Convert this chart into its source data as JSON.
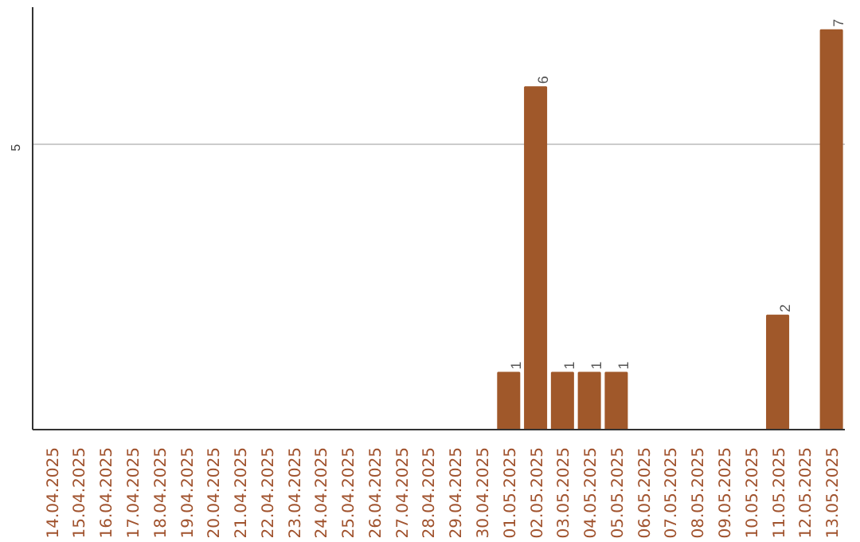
{
  "chart_data": {
    "type": "bar",
    "categories": [
      "14.04.2025",
      "15.04.2025",
      "16.04.2025",
      "17.04.2025",
      "18.04.2025",
      "19.04.2025",
      "20.04.2025",
      "21.04.2025",
      "22.04.2025",
      "23.04.2025",
      "24.04.2025",
      "25.04.2025",
      "26.04.2025",
      "27.04.2025",
      "28.04.2025",
      "29.04.2025",
      "30.04.2025",
      "01.05.2025",
      "02.05.2025",
      "03.05.2025",
      "04.05.2025",
      "05.05.2025",
      "06.05.2025",
      "07.05.2025",
      "08.05.2025",
      "09.05.2025",
      "10.05.2025",
      "11.05.2025",
      "12.05.2025",
      "13.05.2025"
    ],
    "values": [
      null,
      null,
      null,
      null,
      null,
      null,
      null,
      null,
      null,
      null,
      null,
      null,
      null,
      null,
      null,
      null,
      null,
      1,
      6,
      1,
      1,
      1,
      null,
      null,
      null,
      null,
      null,
      2,
      null,
      7
    ],
    "data_labels": true,
    "color": "#a0582a",
    "ylim": [
      0,
      7.4
    ],
    "yticks": [
      5
    ],
    "grid": "y"
  }
}
